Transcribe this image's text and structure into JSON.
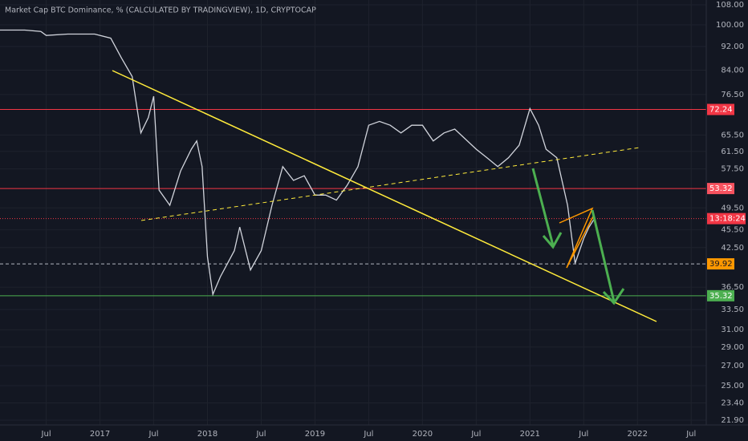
{
  "chart_data": {
    "type": "line",
    "title": "Market Cap BTC Dominance, % (CALCULATED BY TRADINGVIEW), 1D, CRYPTOCAP",
    "log_y": true,
    "grid": true,
    "color": "#d1d4dc",
    "x": [
      2016.07,
      2016.3,
      2016.45,
      2016.5,
      2016.7,
      2016.95,
      2017.1,
      2017.2,
      2017.3,
      2017.38,
      2017.45,
      2017.5,
      2017.55,
      2017.65,
      2017.75,
      2017.85,
      2017.9,
      2017.95,
      2018.0,
      2018.05,
      2018.12,
      2018.25,
      2018.3,
      2018.4,
      2018.5,
      2018.6,
      2018.7,
      2018.8,
      2018.9,
      2019.0,
      2019.1,
      2019.2,
      2019.3,
      2019.4,
      2019.5,
      2019.6,
      2019.7,
      2019.8,
      2019.9,
      2020.0,
      2020.1,
      2020.2,
      2020.3,
      2020.5,
      2020.6,
      2020.7,
      2020.8,
      2020.9,
      2021.0,
      2021.08,
      2021.15,
      2021.25,
      2021.35,
      2021.42,
      2021.5,
      2021.55,
      2021.6
    ],
    "series": [
      {
        "color": "#d1d4dc",
        "values": [
          98,
          98,
          97.5,
          96,
          96.5,
          96.5,
          95,
          88,
          82,
          66,
          70,
          76,
          53,
          50,
          57,
          62,
          64,
          58,
          41,
          35.5,
          38,
          42,
          46,
          39,
          42,
          50,
          58,
          55,
          56,
          52,
          52,
          51,
          54,
          58,
          68,
          69,
          68,
          66,
          68,
          68,
          64,
          66,
          67,
          62,
          60,
          58,
          60,
          63,
          72.5,
          68,
          62,
          60,
          50,
          40,
          44,
          46,
          47.5
        ]
      }
    ],
    "xlim": [
      2016.07,
      2022.64
    ],
    "ylim": [
      21.5,
      110
    ],
    "xticks": [
      {
        "value": 2016.5,
        "label": "Jul"
      },
      2017,
      {
        "value": 2017.5,
        "label": "Jul"
      },
      2018,
      {
        "value": 2018.5,
        "label": "Jul"
      },
      2019,
      {
        "value": 2019.5,
        "label": "Jul"
      },
      2020,
      {
        "value": 2020.5,
        "label": "Jul"
      },
      2021,
      {
        "value": 2021.5,
        "label": "Jul"
      },
      2022,
      {
        "value": 2022.5,
        "label": "Jul"
      }
    ],
    "yticks": [
      {
        "value": 108,
        "label": "108.00"
      },
      {
        "value": 100,
        "label": "100.00"
      },
      {
        "value": 92,
        "label": "92.00"
      },
      {
        "value": 84,
        "label": "84.00"
      },
      {
        "value": 76.5,
        "label": "76.50"
      },
      {
        "value": 65.5,
        "label": "65.50"
      },
      {
        "value": 61.5,
        "label": "61.50"
      },
      {
        "value": 57.5,
        "label": "57.50"
      },
      {
        "value": 49.5,
        "label": "49.50"
      },
      {
        "value": 45.5,
        "label": "45.50"
      },
      {
        "value": 42.5,
        "label": "42.50"
      },
      {
        "value": 36.5,
        "label": "36.50"
      },
      {
        "value": 33.5,
        "label": "33.50"
      },
      {
        "value": 31,
        "label": "31.00"
      },
      {
        "value": 29,
        "label": "29.00"
      },
      {
        "value": 27,
        "label": "27.00"
      },
      {
        "value": 25,
        "label": "25.00"
      },
      {
        "value": 23.4,
        "label": "23.40"
      },
      {
        "value": 21.9,
        "label": "21.90"
      }
    ],
    "levels": [
      {
        "value": 72.24,
        "color": "#f23645",
        "box": "#f23645",
        "dashed": false
      },
      {
        "value": 53.32,
        "color": "#f23645",
        "box": "#f7525f",
        "dashed": false
      },
      {
        "value": 39.92,
        "color": "#b2b5be",
        "box": "#ff9800",
        "dashed": true
      },
      {
        "value": 35.32,
        "color": "#4caf50",
        "box": "#4caf50",
        "dashed": false
      }
    ],
    "countdown": "13:18:24"
  }
}
